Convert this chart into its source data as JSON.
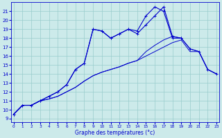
{
  "bg_color": "#cceaea",
  "line_color": "#0000cc",
  "grid_color": "#99cccc",
  "xlabel": "Graphe des températures (°c)",
  "ylabel_ticks": [
    9,
    10,
    11,
    12,
    13,
    14,
    15,
    16,
    17,
    18,
    19,
    20,
    21
  ],
  "xlabel_ticks": [
    0,
    1,
    2,
    3,
    4,
    5,
    6,
    7,
    8,
    9,
    10,
    11,
    12,
    13,
    14,
    15,
    16,
    17,
    18,
    19,
    20,
    21,
    22,
    23
  ],
  "ylim": [
    8.6,
    22.0
  ],
  "xlim": [
    -0.3,
    23.3
  ],
  "s1_x": [
    0,
    1,
    2,
    3,
    4,
    5,
    6,
    7,
    8,
    9,
    10,
    11,
    12,
    13,
    14,
    15,
    16,
    17,
    18,
    19,
    20,
    21,
    22,
    23
  ],
  "s1_y": [
    9.5,
    10.5,
    10.5,
    11.0,
    11.2,
    11.5,
    12.0,
    12.5,
    13.2,
    13.8,
    14.2,
    14.5,
    14.8,
    15.2,
    15.5,
    16.0,
    16.5,
    17.0,
    17.5,
    17.8,
    16.5,
    16.5,
    14.5,
    14.0
  ],
  "s2_x": [
    0,
    1,
    2,
    3,
    4,
    5,
    6,
    7,
    8,
    9,
    10,
    11,
    12,
    13,
    14,
    15,
    16,
    17,
    18,
    19,
    20,
    21,
    22,
    23
  ],
  "s2_y": [
    9.5,
    10.5,
    10.5,
    11.0,
    11.2,
    11.5,
    12.0,
    12.5,
    13.2,
    13.8,
    14.2,
    14.5,
    14.8,
    15.2,
    15.5,
    16.5,
    17.2,
    17.8,
    18.2,
    18.0,
    16.8,
    16.5,
    14.5,
    14.0
  ],
  "s3_x": [
    0,
    1,
    2,
    3,
    4,
    5,
    6,
    7,
    8,
    9,
    10,
    11,
    12,
    13,
    14,
    15,
    16,
    17,
    18,
    19,
    20,
    21,
    22,
    23
  ],
  "s3_y": [
    9.5,
    10.5,
    10.5,
    11.0,
    11.5,
    12.0,
    12.8,
    14.5,
    15.2,
    19.0,
    18.8,
    18.0,
    18.5,
    19.0,
    18.8,
    20.5,
    21.5,
    21.0,
    18.0,
    18.0,
    16.8,
    16.5,
    14.5,
    14.0
  ],
  "s4_x": [
    0,
    1,
    2,
    3,
    4,
    5,
    6,
    7,
    8,
    9,
    10,
    11,
    12,
    13,
    14,
    15,
    16,
    17,
    18,
    19
  ],
  "s4_y": [
    9.5,
    10.5,
    10.5,
    11.0,
    11.5,
    12.0,
    12.8,
    14.5,
    15.2,
    19.0,
    18.8,
    18.0,
    18.5,
    19.0,
    18.5,
    19.5,
    20.5,
    21.5,
    18.2,
    18.0
  ]
}
